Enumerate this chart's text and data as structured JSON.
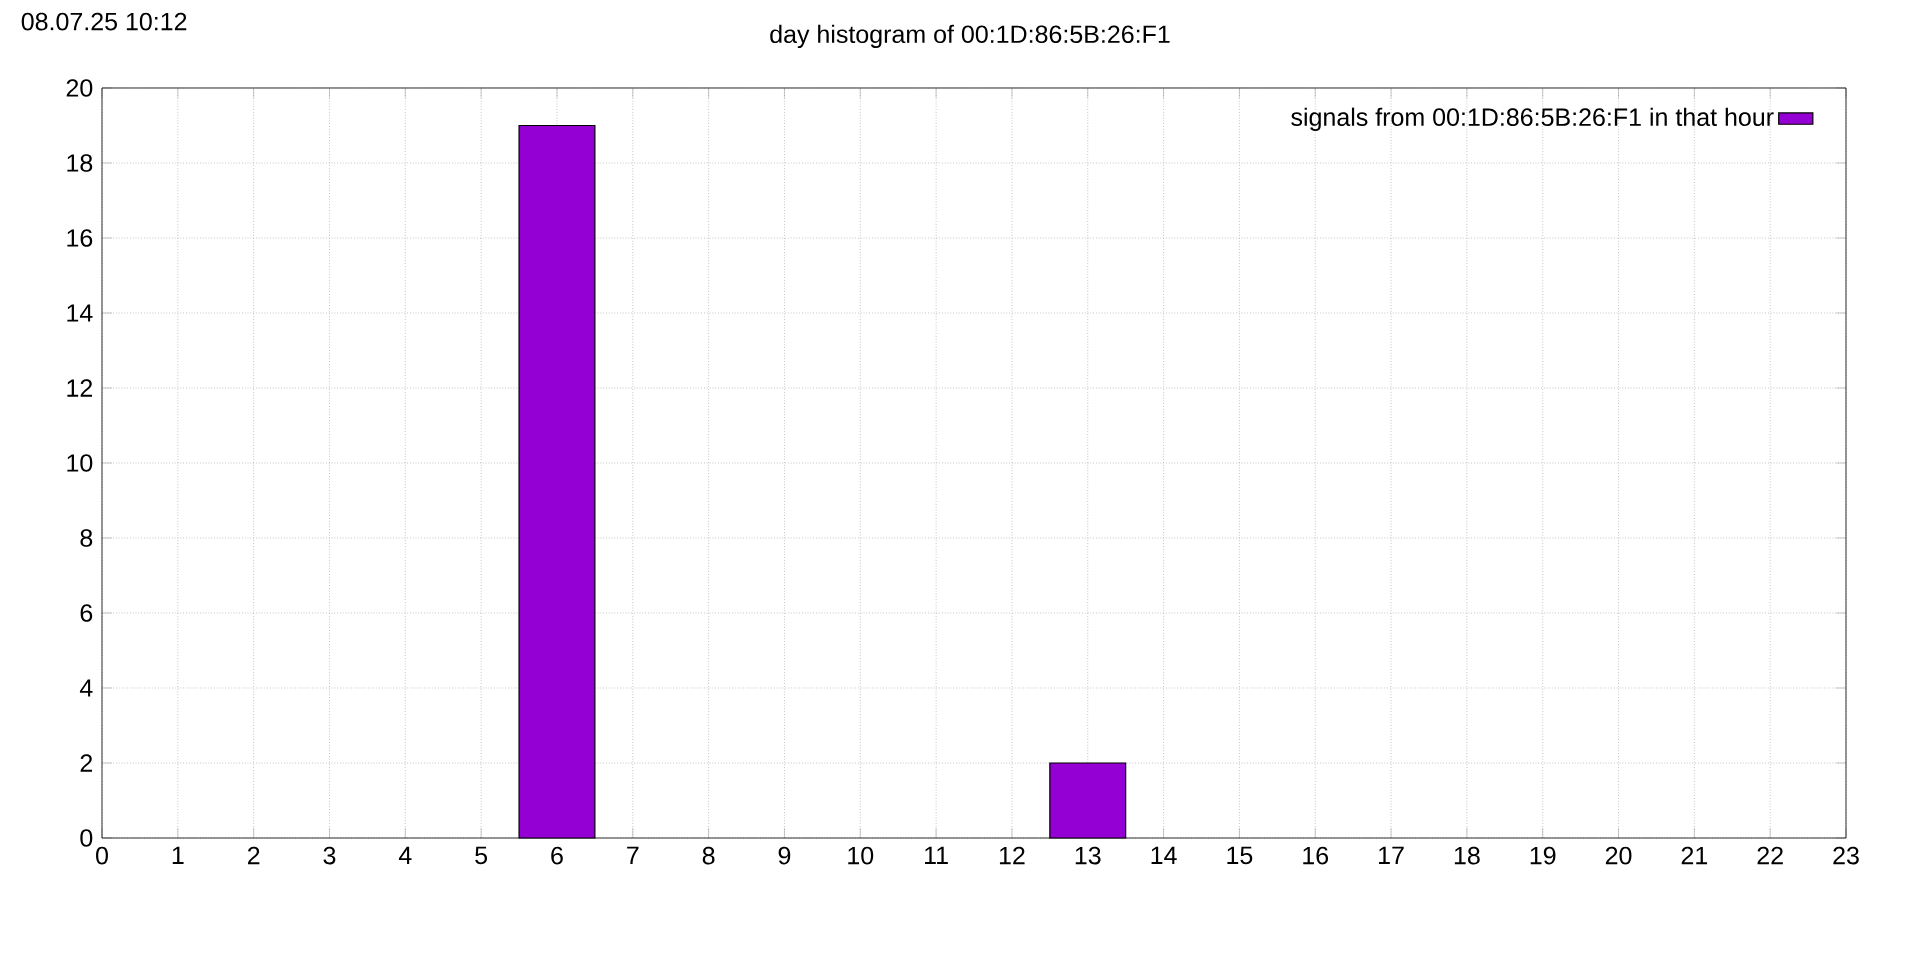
{
  "chart_data": {
    "type": "bar",
    "title": "day histogram of 00:1D:86:5B:26:F1",
    "annotations": [
      "08.07.25 10:12"
    ],
    "x": [
      6,
      13
    ],
    "series": [
      {
        "name": "signals from 00:1D:86:5B:26:F1 in that hour",
        "color": "#9400d3",
        "values": [
          19,
          2
        ]
      }
    ],
    "xlim": [
      0,
      23
    ],
    "xticks": [
      0,
      1,
      2,
      3,
      4,
      5,
      6,
      7,
      8,
      9,
      10,
      11,
      12,
      13,
      14,
      15,
      16,
      17,
      18,
      19,
      20,
      21,
      22,
      23
    ],
    "ylim": [
      0,
      20
    ],
    "yticks": [
      0,
      2,
      4,
      6,
      8,
      10,
      12,
      14,
      16,
      18,
      20
    ],
    "grid": true,
    "legend": "top right"
  }
}
